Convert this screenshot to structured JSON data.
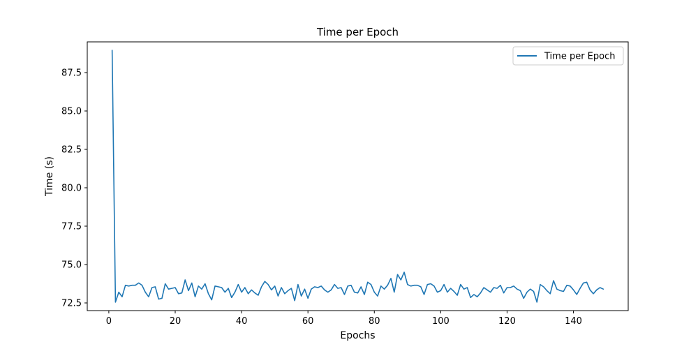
{
  "chart_data": {
    "type": "line",
    "title": "Time per Epoch",
    "xlabel": "Epochs",
    "ylabel": "Time (s)",
    "xlim": [
      -6.5,
      156.5
    ],
    "ylim": [
      72.0,
      89.5
    ],
    "xticks": [
      0,
      20,
      40,
      60,
      80,
      100,
      120,
      140
    ],
    "xtick_labels": [
      "0",
      "20",
      "40",
      "60",
      "80",
      "100",
      "120",
      "140"
    ],
    "yticks": [
      72.5,
      75.0,
      77.5,
      80.0,
      82.5,
      85.0,
      87.5
    ],
    "ytick_labels": [
      "72.5",
      "75.0",
      "77.5",
      "80.0",
      "82.5",
      "85.0",
      "87.5"
    ],
    "grid": false,
    "legend_position": "top-right",
    "colors": {
      "series": "#1f77b4",
      "axes": "#000000",
      "background": "#ffffff"
    },
    "series": [
      {
        "name": "Time per Epoch",
        "x": [
          1,
          2,
          3,
          4,
          5,
          6,
          7,
          8,
          9,
          10,
          11,
          12,
          13,
          14,
          15,
          16,
          17,
          18,
          19,
          20,
          21,
          22,
          23,
          24,
          25,
          26,
          27,
          28,
          29,
          30,
          31,
          32,
          33,
          34,
          35,
          36,
          37,
          38,
          39,
          40,
          41,
          42,
          43,
          44,
          45,
          46,
          47,
          48,
          49,
          50,
          51,
          52,
          53,
          54,
          55,
          56,
          57,
          58,
          59,
          60,
          61,
          62,
          63,
          64,
          65,
          66,
          67,
          68,
          69,
          70,
          71,
          72,
          73,
          74,
          75,
          76,
          77,
          78,
          79,
          80,
          81,
          82,
          83,
          84,
          85,
          86,
          87,
          88,
          89,
          90,
          91,
          92,
          93,
          94,
          95,
          96,
          97,
          98,
          99,
          100,
          101,
          102,
          103,
          104,
          105,
          106,
          107,
          108,
          109,
          110,
          111,
          112,
          113,
          114,
          115,
          116,
          117,
          118,
          119,
          120,
          121,
          122,
          123,
          124,
          125,
          126,
          127,
          128,
          129,
          130,
          131,
          132,
          133,
          134,
          135,
          136,
          137,
          138,
          139,
          140,
          141,
          142,
          143,
          144,
          145,
          146,
          147,
          148,
          149
        ],
        "y": [
          88.95,
          72.55,
          73.2,
          72.9,
          73.65,
          73.6,
          73.65,
          73.65,
          73.8,
          73.65,
          73.2,
          72.9,
          73.5,
          73.55,
          72.75,
          72.8,
          73.75,
          73.4,
          73.45,
          73.5,
          73.1,
          73.15,
          74.0,
          73.3,
          73.8,
          72.9,
          73.6,
          73.4,
          73.75,
          73.1,
          72.7,
          73.6,
          73.55,
          73.5,
          73.2,
          73.45,
          72.85,
          73.2,
          73.7,
          73.2,
          73.5,
          73.1,
          73.35,
          73.15,
          73.0,
          73.55,
          73.9,
          73.7,
          73.35,
          73.6,
          72.95,
          73.5,
          73.1,
          73.3,
          73.45,
          72.65,
          73.7,
          72.95,
          73.4,
          72.8,
          73.4,
          73.55,
          73.5,
          73.6,
          73.35,
          73.2,
          73.35,
          73.7,
          73.45,
          73.5,
          73.05,
          73.6,
          73.65,
          73.2,
          73.15,
          73.55,
          73.05,
          73.85,
          73.7,
          73.2,
          72.95,
          73.6,
          73.4,
          73.65,
          74.1,
          73.2,
          74.35,
          74.0,
          74.5,
          73.7,
          73.6,
          73.65,
          73.65,
          73.55,
          73.05,
          73.7,
          73.75,
          73.6,
          73.2,
          73.3,
          73.7,
          73.2,
          73.45,
          73.25,
          73.0,
          73.7,
          73.4,
          73.5,
          72.85,
          73.05,
          72.9,
          73.15,
          73.5,
          73.35,
          73.2,
          73.5,
          73.45,
          73.65,
          73.15,
          73.5,
          73.5,
          73.6,
          73.4,
          73.3,
          72.8,
          73.2,
          73.4,
          73.25,
          72.55,
          73.7,
          73.55,
          73.3,
          73.1,
          73.95,
          73.4,
          73.3,
          73.25,
          73.65,
          73.6,
          73.35,
          73.05,
          73.45,
          73.8,
          73.85,
          73.35,
          73.1,
          73.35,
          73.5,
          73.4
        ]
      }
    ]
  }
}
